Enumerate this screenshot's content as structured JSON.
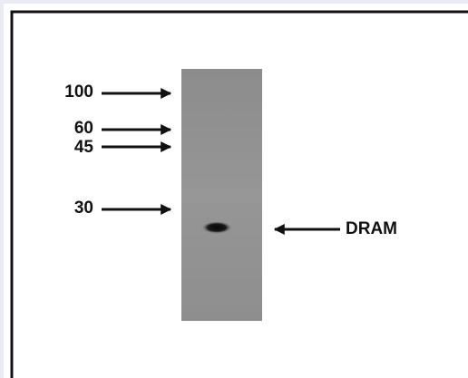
{
  "markers": [
    {
      "label": "100"
    },
    {
      "label": "60"
    },
    {
      "label": "45"
    },
    {
      "label": "30"
    }
  ],
  "band": {
    "label": "DRAM"
  }
}
